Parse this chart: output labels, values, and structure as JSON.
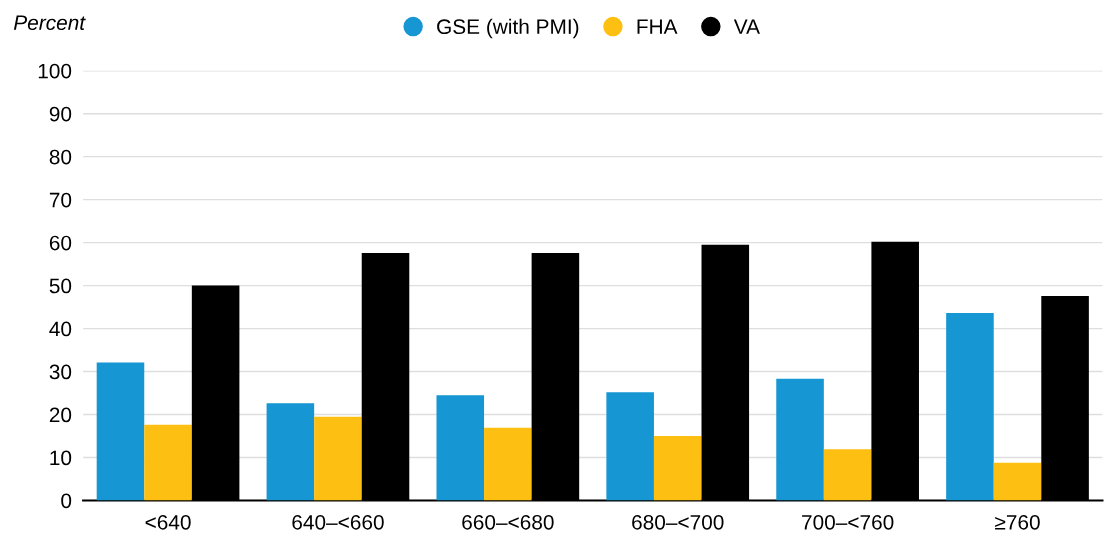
{
  "chart_data": {
    "type": "bar",
    "ylabel": "Percent",
    "categories": [
      "<640",
      "640–<660",
      "660–<680",
      "680–<700",
      "700–<760",
      "≥760"
    ],
    "series": [
      {
        "name": "GSE (with PMI)",
        "color": "#1696d2",
        "values": [
          32.1,
          22.6,
          24.5,
          25.2,
          28.3,
          43.6
        ]
      },
      {
        "name": "FHA",
        "color": "#fdbf11",
        "values": [
          17.6,
          19.5,
          16.9,
          15.0,
          11.9,
          8.8
        ]
      },
      {
        "name": "VA",
        "color": "#000000",
        "values": [
          50.0,
          57.6,
          57.6,
          59.5,
          60.2,
          47.6
        ]
      }
    ],
    "ylim": [
      0,
      100
    ],
    "yticks": [
      0,
      10,
      20,
      30,
      40,
      50,
      60,
      70,
      80,
      90,
      100
    ],
    "grid": "y",
    "legend": "top"
  }
}
